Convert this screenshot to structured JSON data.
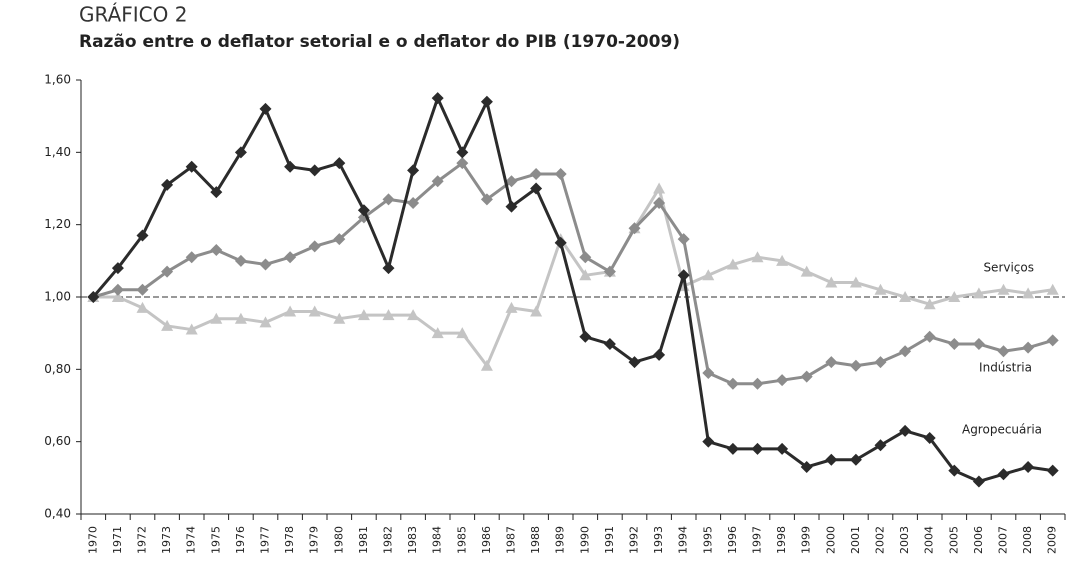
{
  "chart_data": {
    "type": "line",
    "title": "GRÁFICO 2",
    "subtitle": "Razão entre o deflator setorial e o deflator do PIB (1970-2009)",
    "categories": [
      "1970",
      "1971",
      "1972",
      "1973",
      "1974",
      "1975",
      "1976",
      "1977",
      "1978",
      "1979",
      "1980",
      "1981",
      "1982",
      "1983",
      "1984",
      "1985",
      "1986",
      "1987",
      "1988",
      "1989",
      "1990",
      "1991",
      "1992",
      "1993",
      "1994",
      "1995",
      "1996",
      "1997",
      "1998",
      "1999",
      "2000",
      "2001",
      "2002",
      "2003",
      "2004",
      "2005",
      "2006",
      "2007",
      "2008",
      "2009"
    ],
    "series": [
      {
        "name": "Agropecuária",
        "color": "#2b2b2b",
        "marker": "diamond",
        "values": [
          1.0,
          1.08,
          1.17,
          1.31,
          1.36,
          1.29,
          1.4,
          1.52,
          1.36,
          1.35,
          1.37,
          1.24,
          1.08,
          1.35,
          1.55,
          1.4,
          1.54,
          1.25,
          1.3,
          1.15,
          0.89,
          0.87,
          0.82,
          0.84,
          1.06,
          0.6,
          0.58,
          0.58,
          0.58,
          0.53,
          0.55,
          0.55,
          0.59,
          0.63,
          0.61,
          0.52,
          0.49,
          0.51,
          0.53,
          0.52
        ]
      },
      {
        "name": "Indústria",
        "color": "#8c8c8c",
        "marker": "diamond",
        "values": [
          1.0,
          1.02,
          1.02,
          1.07,
          1.11,
          1.13,
          1.1,
          1.09,
          1.11,
          1.14,
          1.16,
          1.22,
          1.27,
          1.26,
          1.32,
          1.37,
          1.27,
          1.32,
          1.34,
          1.34,
          1.11,
          1.07,
          1.19,
          1.26,
          1.16,
          0.79,
          0.76,
          0.76,
          0.77,
          0.78,
          0.82,
          0.81,
          0.82,
          0.85,
          0.89,
          0.87,
          0.87,
          0.85,
          0.86,
          0.88
        ]
      },
      {
        "name": "Serviços",
        "color": "#c4c4c4",
        "marker": "triangle",
        "values": [
          1.0,
          1.0,
          0.97,
          0.92,
          0.91,
          0.94,
          0.94,
          0.93,
          0.96,
          0.96,
          0.94,
          0.95,
          0.95,
          0.95,
          0.9,
          0.9,
          0.81,
          0.97,
          0.96,
          1.16,
          1.06,
          1.07,
          1.19,
          1.3,
          1.03,
          1.06,
          1.09,
          1.11,
          1.1,
          1.07,
          1.04,
          1.04,
          1.02,
          1.0,
          0.98,
          1.0,
          1.01,
          1.02,
          1.01,
          1.02
        ]
      }
    ],
    "ylim": [
      0.4,
      1.6
    ],
    "yticks": [
      {
        "value": 0.4,
        "label": "0,40"
      },
      {
        "value": 0.6,
        "label": "0,60"
      },
      {
        "value": 0.8,
        "label": "0,80"
      },
      {
        "value": 1.0,
        "label": "1,00"
      },
      {
        "value": 1.2,
        "label": "1,20"
      },
      {
        "value": 1.4,
        "label": "1,40"
      },
      {
        "value": 1.6,
        "label": "1,60"
      }
    ],
    "reference_line": 1,
    "grid": false
  }
}
